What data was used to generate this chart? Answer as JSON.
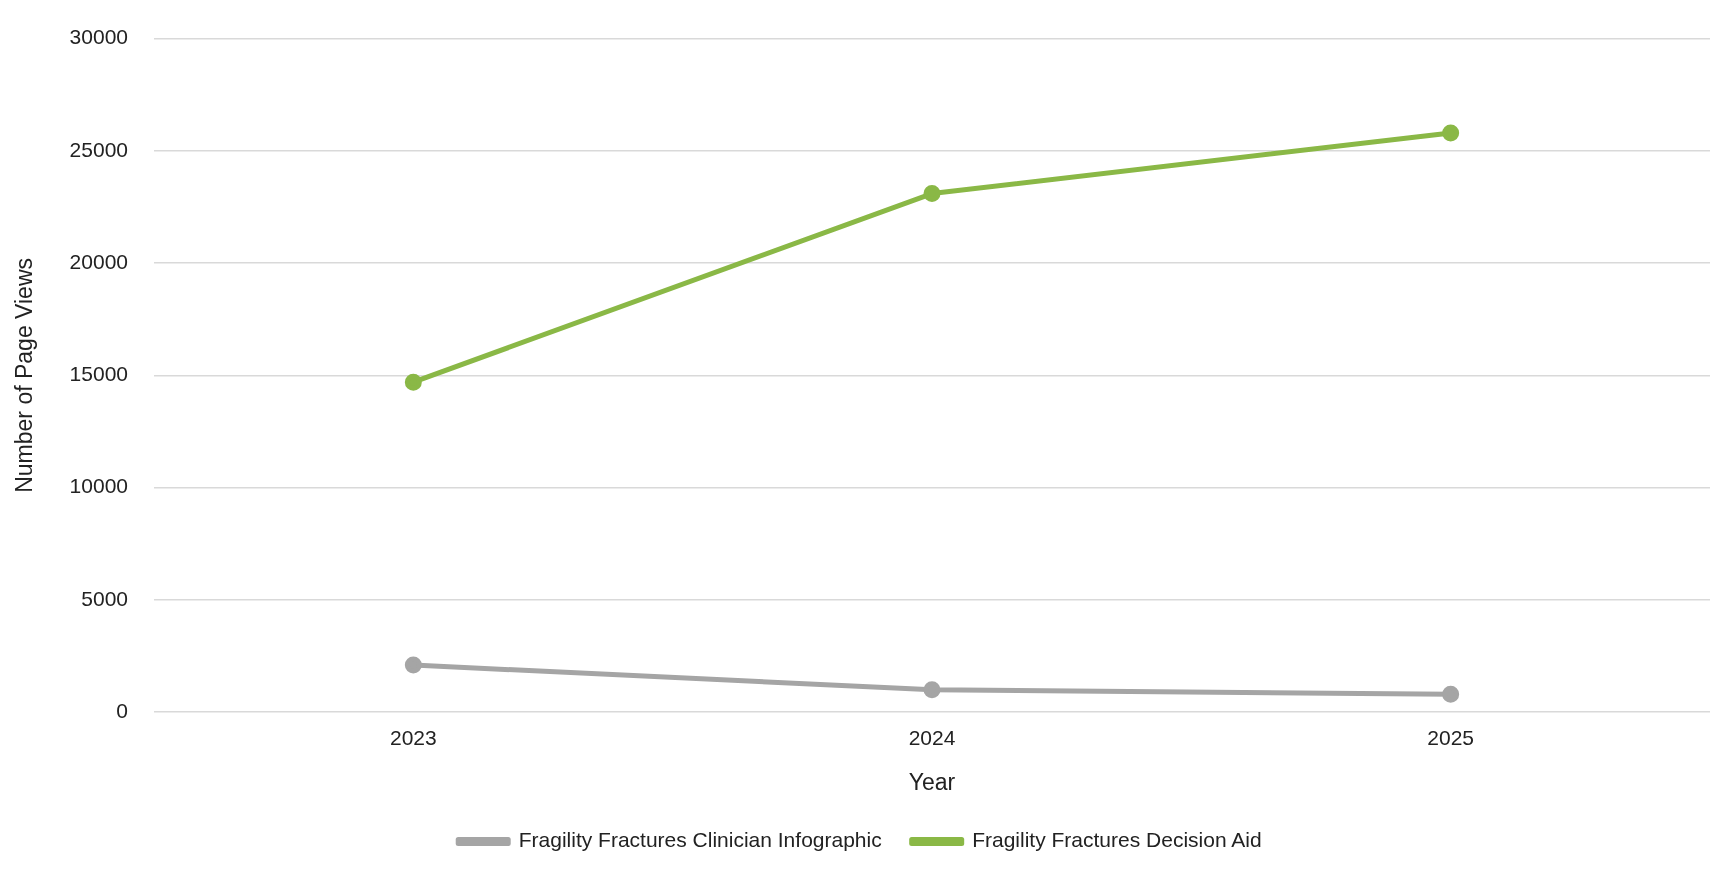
{
  "chart_data": {
    "type": "line",
    "xlabel": "Year",
    "ylabel": "Number of Page Views",
    "categories": [
      "2023",
      "2024",
      "2025"
    ],
    "series": [
      {
        "name": "Fragility Fractures Clinician Infographic",
        "color": "#a5a5a5",
        "values": [
          2100,
          1000,
          800
        ]
      },
      {
        "name": "Fragility Fractures Decision Aid",
        "color": "#8ab846",
        "values": [
          14700,
          23100,
          25800
        ]
      }
    ],
    "ylim": [
      0,
      30000
    ],
    "yticks": [
      0,
      5000,
      10000,
      15000,
      20000,
      25000,
      30000
    ],
    "grid": "y",
    "legend": "bottom",
    "marker": "circle",
    "line_style": "solid"
  }
}
